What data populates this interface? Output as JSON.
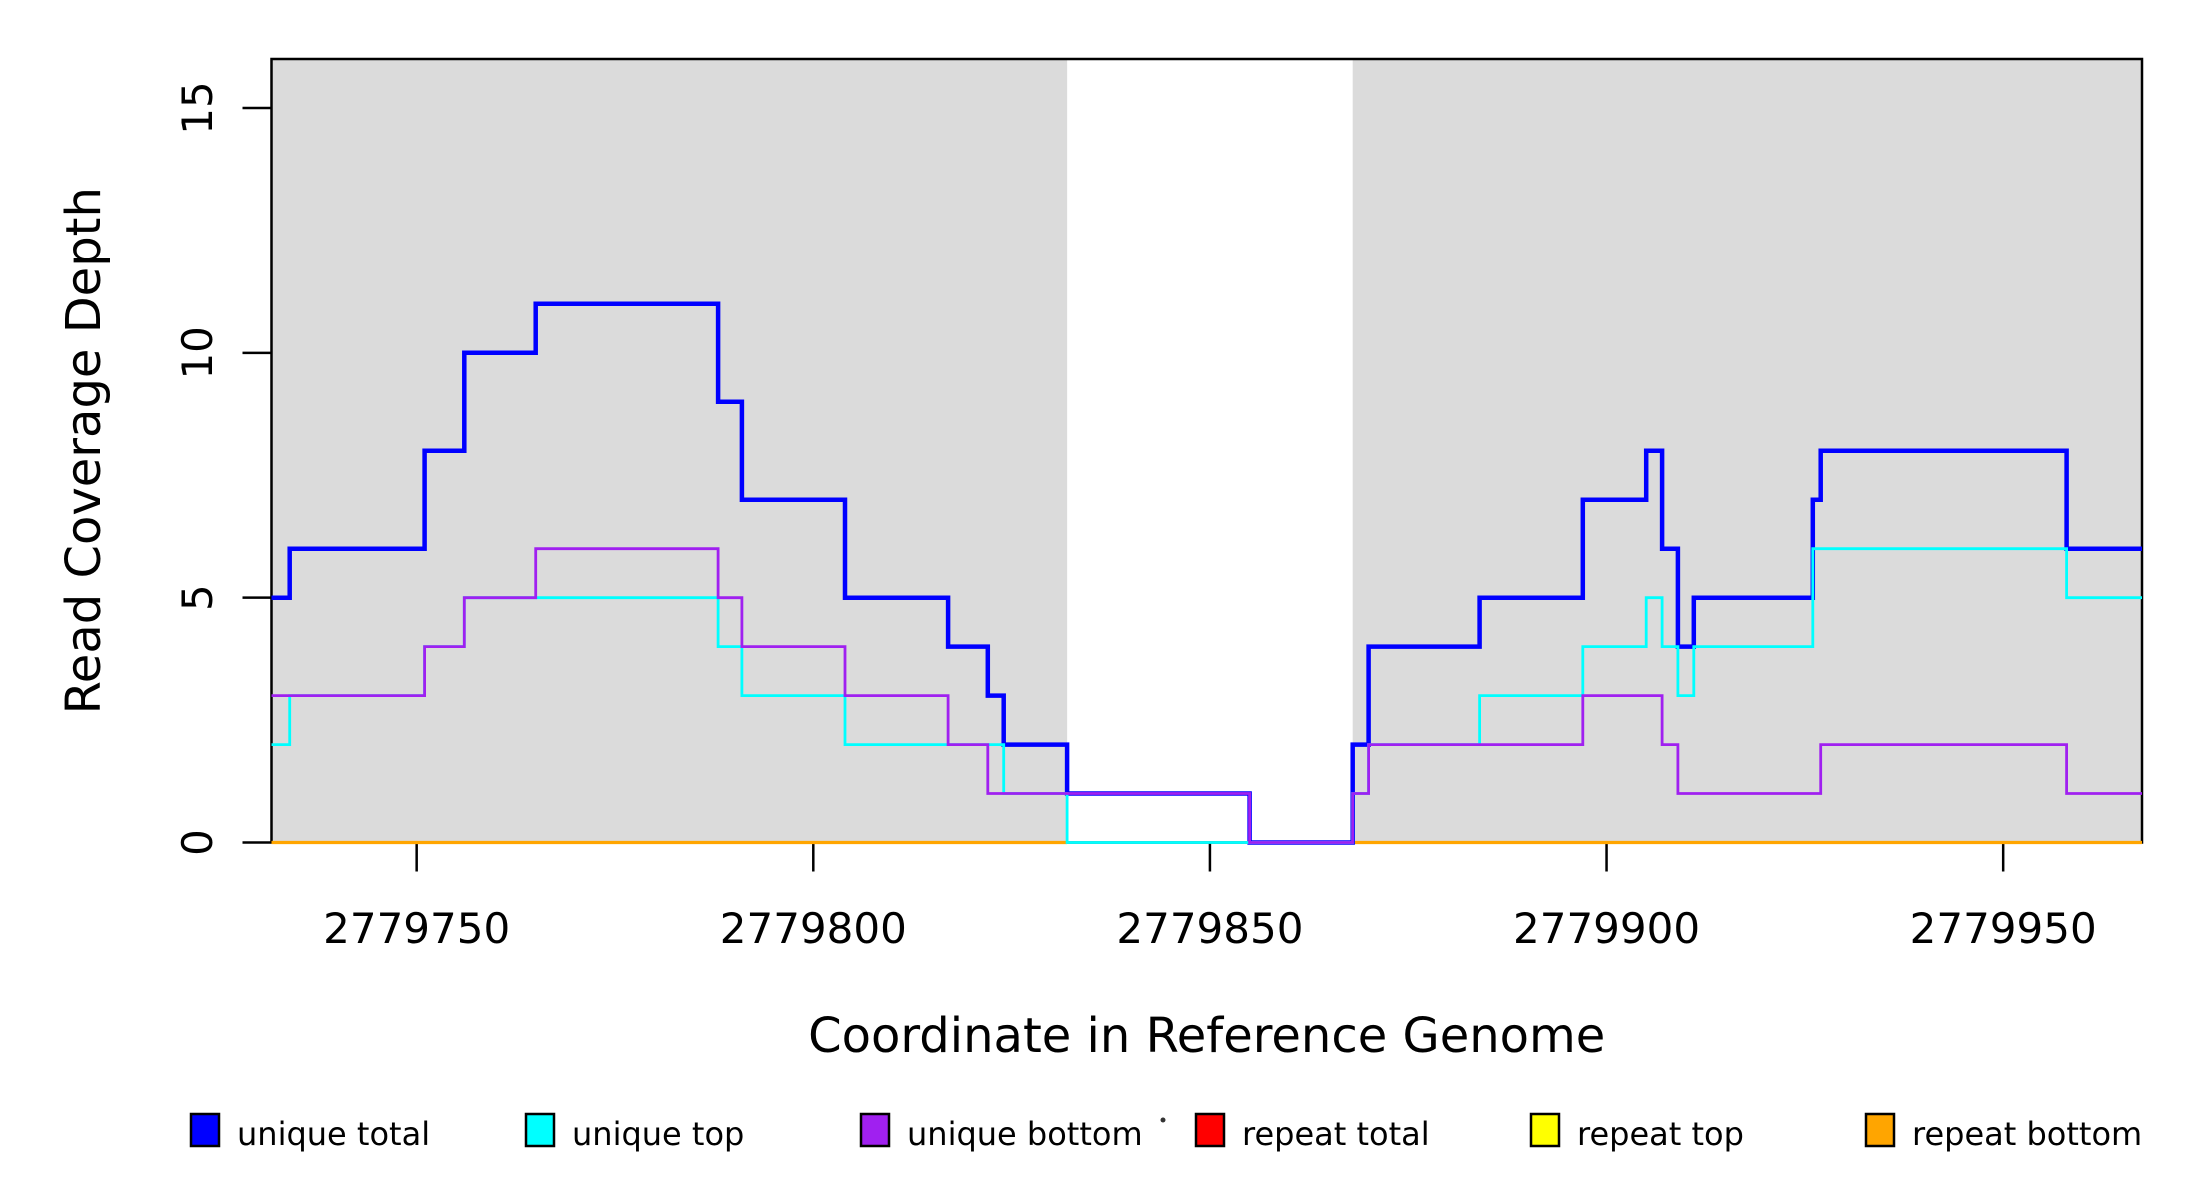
{
  "chart_data": {
    "type": "step",
    "title": "",
    "x_axis": {
      "title": "Coordinate in Reference Genome",
      "range": [
        2779731.7,
        2779967.5
      ],
      "ticks": [
        {
          "value": 2779750,
          "label": "2779750"
        },
        {
          "value": 2779800,
          "label": "2779800"
        },
        {
          "value": 2779850,
          "label": "2779850"
        },
        {
          "value": 2779900,
          "label": "2779900"
        },
        {
          "value": 2779950,
          "label": "2779950"
        }
      ]
    },
    "y_axis": {
      "title": "Read Coverage Depth",
      "range": [
        0,
        16
      ],
      "ticks": [
        {
          "value": 0,
          "label": "0"
        },
        {
          "value": 5,
          "label": "5"
        },
        {
          "value": 10,
          "label": "10"
        },
        {
          "value": 15,
          "label": "15"
        }
      ]
    },
    "colors": {
      "background": "#FFFFFF",
      "shaded_region": "#DBDBDB",
      "axis": "#000000"
    },
    "shaded_regions": [
      {
        "name": "left-unique-block",
        "x0": 2779731.7,
        "x1": 2779832
      },
      {
        "name": "right-unique-block",
        "x0": 2779868,
        "x1": 2779967.5
      }
    ],
    "series": [
      {
        "name": "repeat total",
        "color": "#FF0000",
        "line_width": 2.5,
        "segments": [
          [
            [
              2779731.7,
              0
            ],
            [
              2779832,
              0
            ]
          ],
          [
            [
              2779868,
              0
            ],
            [
              2779967.5,
              0
            ]
          ]
        ]
      },
      {
        "name": "repeat top",
        "color": "#FFFF00",
        "line_width": 2.5,
        "segments": [
          [
            [
              2779731.7,
              0
            ],
            [
              2779832,
              0
            ]
          ],
          [
            [
              2779868,
              0
            ],
            [
              2779967.5,
              0
            ]
          ]
        ]
      },
      {
        "name": "repeat bottom",
        "color": "#FFA500",
        "line_width": 3.2,
        "segments": [
          [
            [
              2779731.7,
              0
            ],
            [
              2779832,
              0
            ]
          ],
          [
            [
              2779868,
              0
            ],
            [
              2779967.5,
              0
            ]
          ]
        ]
      },
      {
        "name": "unique total",
        "color": "#0000FF",
        "line_width": 4.5,
        "segments": [
          [
            [
              2779731.7,
              5
            ],
            [
              2779734,
              6
            ],
            [
              2779751,
              8
            ],
            [
              2779756,
              10
            ],
            [
              2779765,
              11
            ],
            [
              2779788,
              9
            ],
            [
              2779791,
              7
            ],
            [
              2779804,
              5
            ],
            [
              2779817,
              4
            ],
            [
              2779822,
              3
            ],
            [
              2779824,
              2
            ],
            [
              2779832,
              1
            ],
            [
              2779855,
              0
            ],
            [
              2779868,
              2
            ],
            [
              2779870,
              4
            ],
            [
              2779884,
              5
            ],
            [
              2779897,
              7
            ],
            [
              2779905,
              8
            ],
            [
              2779907,
              6
            ],
            [
              2779909,
              4
            ],
            [
              2779911,
              5
            ],
            [
              2779926,
              7
            ],
            [
              2779927,
              8
            ],
            [
              2779958,
              6
            ],
            [
              2779967.5,
              6
            ]
          ]
        ]
      },
      {
        "name": "unique top",
        "color": "#00FFFF",
        "line_width": 2.8,
        "segments": [
          [
            [
              2779731.7,
              2
            ],
            [
              2779734,
              3
            ],
            [
              2779751,
              4
            ],
            [
              2779756,
              5
            ],
            [
              2779788,
              4
            ],
            [
              2779791,
              3
            ],
            [
              2779804,
              2
            ],
            [
              2779824,
              1
            ],
            [
              2779832,
              0
            ],
            [
              2779868,
              1
            ],
            [
              2779870,
              2
            ],
            [
              2779884,
              3
            ],
            [
              2779897,
              4
            ],
            [
              2779905,
              5
            ],
            [
              2779907,
              4
            ],
            [
              2779909,
              3
            ],
            [
              2779911,
              4
            ],
            [
              2779926,
              6
            ],
            [
              2779958,
              5
            ],
            [
              2779967.5,
              5
            ]
          ]
        ]
      },
      {
        "name": "unique bottom",
        "color": "#A020F0",
        "line_width": 2.8,
        "segments": [
          [
            [
              2779731.7,
              3
            ],
            [
              2779751,
              4
            ],
            [
              2779756,
              5
            ],
            [
              2779765,
              6
            ],
            [
              2779788,
              5
            ],
            [
              2779791,
              4
            ],
            [
              2779804,
              3
            ],
            [
              2779817,
              2
            ],
            [
              2779822,
              1
            ],
            [
              2779855,
              0
            ],
            [
              2779868,
              1
            ],
            [
              2779870,
              2
            ],
            [
              2779897,
              3
            ],
            [
              2779907,
              2
            ],
            [
              2779909,
              1
            ],
            [
              2779927,
              2
            ],
            [
              2779958,
              1
            ],
            [
              2779967.5,
              1
            ]
          ]
        ]
      }
    ],
    "legend": {
      "items": [
        {
          "label": "unique total",
          "color": "#0000FF"
        },
        {
          "label": "unique top",
          "color": "#00FFFF"
        },
        {
          "label": "unique bottom",
          "color": "#A020F0"
        },
        {
          "label": "repeat total",
          "color": "#FF0000"
        },
        {
          "label": "repeat top",
          "color": "#FFFF00"
        },
        {
          "label": "repeat bottom",
          "color": "#FFA500"
        }
      ]
    }
  }
}
